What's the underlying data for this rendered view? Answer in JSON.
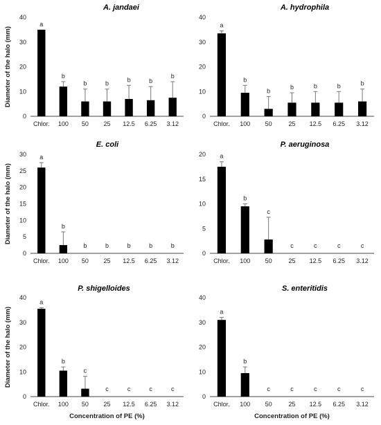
{
  "figure": {
    "ylabel": "Diameter of the halo (mm)",
    "xlabel": "Concentration of PE (%)"
  },
  "chart_data": [
    {
      "type": "bar",
      "title": "A. jandaei",
      "categories": [
        "Chlor.",
        "100",
        "50",
        "25",
        "12.5",
        "6.25",
        "3.12"
      ],
      "values": [
        35,
        12,
        6,
        6,
        7,
        6.5,
        7.5
      ],
      "errors": [
        0,
        2,
        5,
        5,
        5.5,
        5.5,
        6.5
      ],
      "letters": [
        "a",
        "b",
        "b",
        "b",
        "b",
        "b",
        "b"
      ],
      "ylim": [
        0,
        40
      ],
      "yticks": [
        0,
        10,
        20,
        30,
        40
      ],
      "ylabel": "Diameter of the halo (mm)",
      "xlabel": ""
    },
    {
      "type": "bar",
      "title": "A. hydrophila",
      "categories": [
        "Chlor.",
        "100",
        "50",
        "25",
        "12.5",
        "6.25",
        "3.12"
      ],
      "values": [
        33.5,
        9.5,
        3,
        5.5,
        5.5,
        5.5,
        6
      ],
      "errors": [
        1,
        3,
        5,
        4,
        4.5,
        4.5,
        5
      ],
      "letters": [
        "a",
        "b",
        "b",
        "b",
        "b",
        "b",
        "b"
      ],
      "ylim": [
        0,
        40
      ],
      "yticks": [
        0,
        10,
        20,
        30,
        40
      ],
      "ylabel": "",
      "xlabel": ""
    },
    {
      "type": "bar",
      "title": "E. coli",
      "categories": [
        "Chlor.",
        "100",
        "50",
        "25",
        "12.5",
        "6.25",
        "3.12"
      ],
      "values": [
        26,
        2.5,
        0,
        0,
        0,
        0,
        0
      ],
      "errors": [
        1.5,
        4,
        0,
        0,
        0,
        0,
        0
      ],
      "letters": [
        "a",
        "b",
        "b",
        "b",
        "b",
        "b",
        "b"
      ],
      "ylim": [
        0,
        30
      ],
      "yticks": [
        0,
        5,
        10,
        15,
        20,
        25,
        30
      ],
      "ylabel": "Diameter of the halo (mm)",
      "xlabel": ""
    },
    {
      "type": "bar",
      "title": "P. aeruginosa",
      "categories": [
        "Chlor.",
        "100",
        "50",
        "25",
        "12.5",
        "6.25",
        "3.12"
      ],
      "values": [
        17.5,
        9.5,
        2.8,
        0,
        0,
        0,
        0
      ],
      "errors": [
        1,
        0.5,
        4.5,
        0,
        0,
        0,
        0
      ],
      "letters": [
        "a",
        "b",
        "c",
        "c",
        "c",
        "c",
        "c"
      ],
      "ylim": [
        0,
        20
      ],
      "yticks": [
        0,
        5,
        10,
        15,
        20
      ],
      "ylabel": "",
      "xlabel": ""
    },
    {
      "type": "bar",
      "title": "P. shigelloides",
      "categories": [
        "Chlor.",
        "100",
        "50",
        "25",
        "12.5",
        "6.25",
        "3.12"
      ],
      "values": [
        35.5,
        10.5,
        3.2,
        0,
        0,
        0,
        0
      ],
      "errors": [
        0.5,
        1.5,
        5,
        0,
        0,
        0,
        0
      ],
      "letters": [
        "a",
        "b",
        "c",
        "c",
        "c",
        "c",
        "c"
      ],
      "ylim": [
        0,
        40
      ],
      "yticks": [
        0,
        10,
        20,
        30,
        40
      ],
      "ylabel": "Diameter of the halo (mm)",
      "xlabel": "Concentration of PE (%)"
    },
    {
      "type": "bar",
      "title": "S. enteritidis",
      "categories": [
        "Chlor.",
        "100",
        "50",
        "25",
        "12.5",
        "6.25",
        "3.12"
      ],
      "values": [
        31,
        9.5,
        0,
        0,
        0,
        0,
        0
      ],
      "errors": [
        1,
        2.5,
        0,
        0,
        0,
        0,
        0
      ],
      "letters": [
        "a",
        "b",
        "c",
        "c",
        "c",
        "c",
        "c"
      ],
      "ylim": [
        0,
        40
      ],
      "yticks": [
        0,
        10,
        20,
        30,
        40
      ],
      "ylabel": "",
      "xlabel": "Concentration of PE (%)"
    }
  ]
}
